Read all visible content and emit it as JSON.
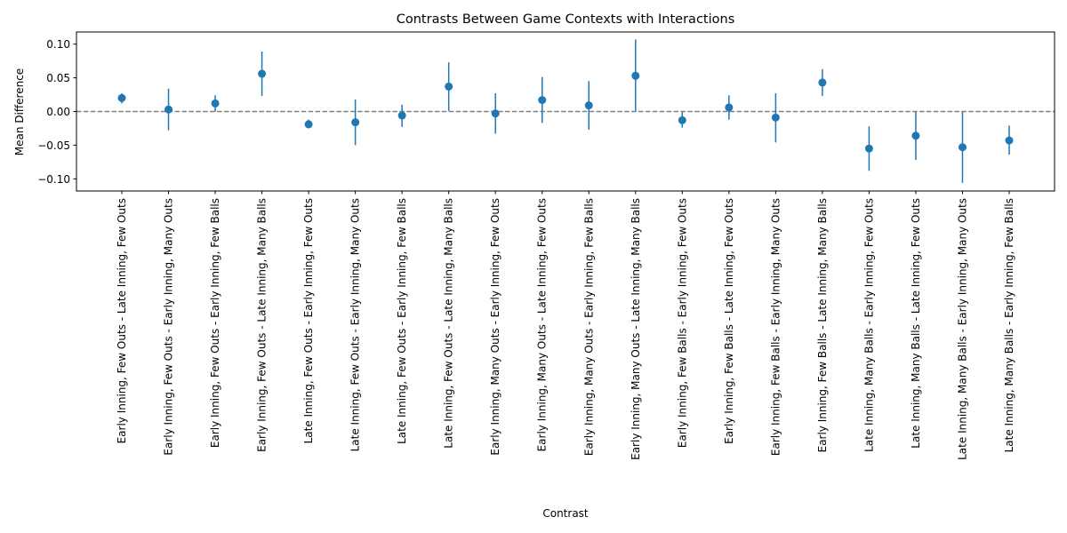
{
  "chart_data": {
    "type": "scatter",
    "title": "Contrasts Between Game Contexts with Interactions",
    "xlabel": "Contrast",
    "ylabel": "Mean Difference",
    "ylim": [
      -0.118,
      0.118
    ],
    "yticks": [
      0.1,
      0.05,
      0.0,
      -0.05,
      -0.1
    ],
    "ytick_labels": [
      "0.10",
      "0.05",
      "0.00",
      "−0.05",
      "−0.10"
    ],
    "reference_line": {
      "y": 0,
      "style": "dashed",
      "color": "#808080"
    },
    "series_color": "#1f77b4",
    "points": [
      {
        "label": "Early Inning, Few Outs - Late Inning, Few Outs",
        "mean": 0.02,
        "lower": 0.012,
        "upper": 0.027
      },
      {
        "label": "Early Inning, Few Outs - Early Inning, Many Outs",
        "mean": 0.003,
        "lower": -0.028,
        "upper": 0.034
      },
      {
        "label": "Early Inning, Few Outs - Early Inning, Few Balls",
        "mean": 0.012,
        "lower": 0.0,
        "upper": 0.024
      },
      {
        "label": "Early Inning, Few Outs - Late Inning, Many Balls",
        "mean": 0.056,
        "lower": 0.023,
        "upper": 0.089
      },
      {
        "label": "Late Inning, Few Outs - Early Inning, Few Outs",
        "mean": -0.019,
        "lower": -0.025,
        "upper": -0.012
      },
      {
        "label": "Late Inning, Few Outs - Early Inning, Many Outs",
        "mean": -0.016,
        "lower": -0.05,
        "upper": 0.018
      },
      {
        "label": "Late Inning, Few Outs - Early Inning, Few Balls",
        "mean": -0.006,
        "lower": -0.023,
        "upper": 0.01
      },
      {
        "label": "Late Inning, Few Outs - Late Inning, Many Balls",
        "mean": 0.037,
        "lower": 0.001,
        "upper": 0.073
      },
      {
        "label": "Early Inning, Many Outs - Early Inning, Few Outs",
        "mean": -0.003,
        "lower": -0.033,
        "upper": 0.027
      },
      {
        "label": "Early Inning, Many Outs - Late Inning, Few Outs",
        "mean": 0.017,
        "lower": -0.017,
        "upper": 0.051
      },
      {
        "label": "Early Inning, Many Outs - Early Inning, Few Balls",
        "mean": 0.009,
        "lower": -0.027,
        "upper": 0.045
      },
      {
        "label": "Early Inning, Many Outs - Late Inning, Many Balls",
        "mean": 0.053,
        "lower": 0.0,
        "upper": 0.107
      },
      {
        "label": "Early Inning, Few Balls - Early Inning, Few Outs",
        "mean": -0.013,
        "lower": -0.024,
        "upper": -0.001
      },
      {
        "label": "Early Inning, Few Balls - Late Inning, Few Outs",
        "mean": 0.006,
        "lower": -0.012,
        "upper": 0.024
      },
      {
        "label": "Early Inning, Few Balls - Early Inning, Many Outs",
        "mean": -0.009,
        "lower": -0.046,
        "upper": 0.027
      },
      {
        "label": "Early Inning, Few Balls - Late Inning, Many Balls",
        "mean": 0.043,
        "lower": 0.023,
        "upper": 0.063
      },
      {
        "label": "Late Inning, Many Balls - Early Inning, Few Outs",
        "mean": -0.055,
        "lower": -0.088,
        "upper": -0.022
      },
      {
        "label": "Late Inning, Many Balls - Late Inning, Few Outs",
        "mean": -0.036,
        "lower": -0.072,
        "upper": 0.0
      },
      {
        "label": "Late Inning, Many Balls - Early Inning, Many Outs",
        "mean": -0.053,
        "lower": -0.106,
        "upper": 0.0
      },
      {
        "label": "Late Inning, Many Balls - Early Inning, Few Balls",
        "mean": -0.043,
        "lower": -0.064,
        "upper": -0.021
      }
    ]
  }
}
